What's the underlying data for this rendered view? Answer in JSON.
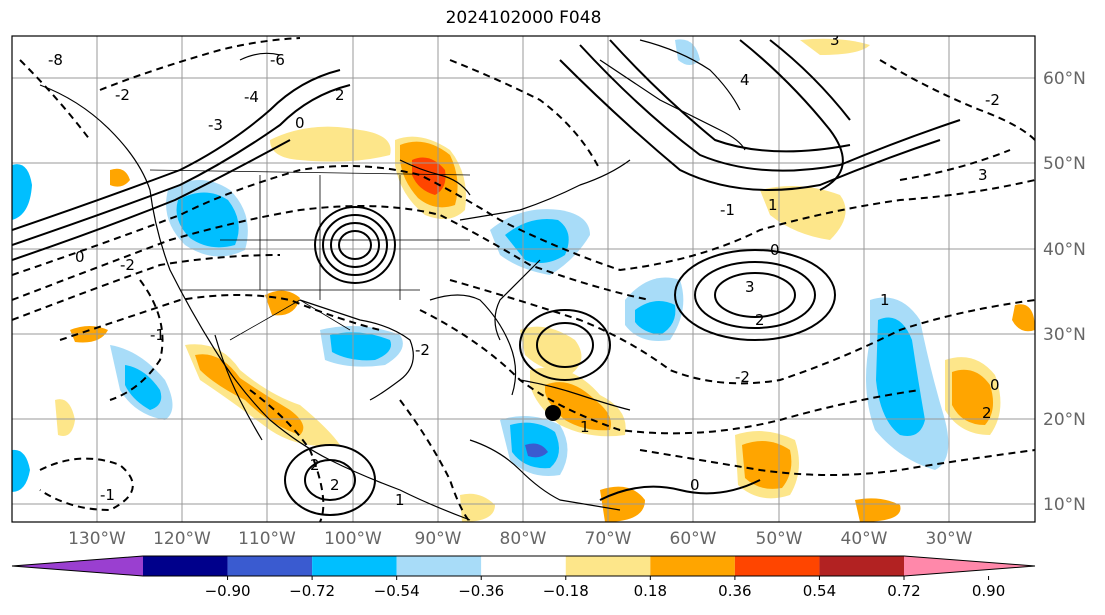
{
  "title": "2024102000 F048",
  "lon_labels": [
    "130°W",
    "120°W",
    "110°W",
    "100°W",
    "90°W",
    "80°W",
    "70°W",
    "60°W",
    "50°W",
    "40°W",
    "30°W"
  ],
  "lat_labels": [
    "60°N",
    "50°N",
    "40°N",
    "30°N",
    "20°N",
    "10°N"
  ],
  "colorbar": {
    "ticks": [
      "−0.90",
      "−0.72",
      "−0.54",
      "−0.36",
      "−0.18",
      "0.18",
      "0.36",
      "0.54",
      "0.72",
      "0.90"
    ],
    "colors": [
      "#9a3fd0",
      "#00008b",
      "#3a5bd0",
      "#00bfff",
      "#a8dcf8",
      "#ffffff",
      "#fde68a",
      "#ffa500",
      "#ff4500",
      "#b22222",
      "#ff88aa"
    ]
  },
  "contour_labels": [
    "-8",
    "-6",
    "-4",
    "-3",
    "-2",
    "-1",
    "0",
    "1",
    "2",
    "3",
    "4",
    "-2",
    "-1",
    "0",
    "1",
    "2",
    "3",
    "-2",
    "0",
    "2",
    "-1",
    "0",
    "1",
    "3",
    "2",
    "-2",
    "0",
    "1",
    "-2",
    "2"
  ]
}
